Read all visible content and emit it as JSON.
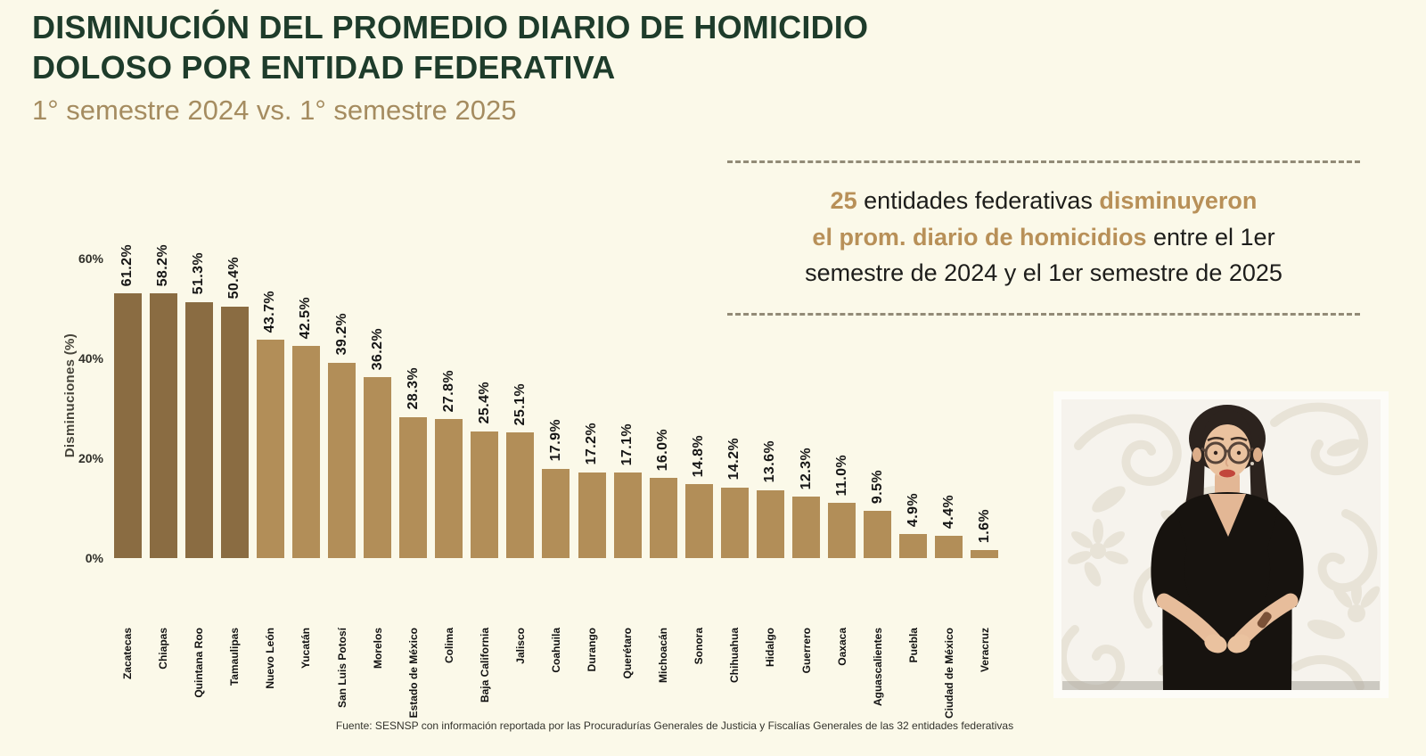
{
  "header": {
    "title_line1": "DISMINUCIÓN DEL PROMEDIO DIARIO DE HOMICIDIO",
    "title_line2": "DOLOSO POR ENTIDAD FEDERATIVA",
    "title_color": "#1e3c2b",
    "subtitle": "1° semestre 2024 vs. 1° semestre 2025",
    "subtitle_color": "#a58c60"
  },
  "annotation": {
    "lines": [
      [
        {
          "text": "25",
          "gold": true
        },
        {
          "text": " entidades federativas ",
          "gold": false
        },
        {
          "text": "disminuyeron",
          "gold": true
        }
      ],
      [
        {
          "text": "el prom. diario de homicidios",
          "gold": true
        },
        {
          "text": " entre el 1er",
          "gold": false
        }
      ],
      [
        {
          "text": "semestre de 2024 y el 1er semestre de 2025",
          "gold": false
        }
      ]
    ],
    "gold_color": "#b89058",
    "text_color": "#1d1d1b"
  },
  "chart_data": {
    "type": "bar",
    "title": "Disminución del promedio diario de homicidio doloso por entidad federativa, 1° semestre 2024 vs. 1° semestre 2025",
    "xlabel": "",
    "ylabel": "Disminuciones (%)",
    "ylim": [
      0,
      63
    ],
    "grid": false,
    "legend": null,
    "yticks": [
      {
        "label": "0%",
        "value": 0
      },
      {
        "label": "20%",
        "value": 20
      },
      {
        "label": "40%",
        "value": 40
      },
      {
        "label": "60%",
        "value": 60
      }
    ],
    "categories": [
      "Zacatecas",
      "Chiapas",
      "Quintana Roo",
      "Tamaulipas",
      "Nuevo León",
      "Yucatán",
      "San Luis Potosí",
      "Morelos",
      "Estado de México",
      "Colima",
      "Baja California",
      "Jalisco",
      "Coahuila",
      "Durango",
      "Querétaro",
      "Michoacán",
      "Sonora",
      "Chihuahua",
      "Hidalgo",
      "Guerrero",
      "Oaxaca",
      "Aguascalientes",
      "Puebla",
      "Ciudad de México",
      "Veracruz"
    ],
    "values": [
      61.2,
      58.2,
      51.3,
      50.4,
      43.7,
      42.5,
      39.2,
      36.2,
      28.3,
      27.8,
      25.4,
      25.1,
      17.9,
      17.2,
      17.1,
      16.0,
      14.8,
      14.2,
      13.6,
      12.3,
      11.0,
      9.5,
      4.9,
      4.4,
      1.6
    ],
    "value_labels": [
      "61.2%",
      "58.2%",
      "51.3%",
      "50.4%",
      "43.7%",
      "42.5%",
      "39.2%",
      "36.2%",
      "28.3%",
      "27.8%",
      "25.4%",
      "25.1%",
      "17.9%",
      "17.2%",
      "17.1%",
      "16.0%",
      "14.8%",
      "14.2%",
      "13.6%",
      "12.3%",
      "11.0%",
      "9.5%",
      "4.9%",
      "4.4%",
      "1.6%"
    ],
    "bar_colors": {
      "dark": "#8a6c42",
      "light": "#b28e58",
      "dark_count": 4
    }
  },
  "footer": {
    "source": "Fuente: SESNSP con información reportada por las Procuradurías Generales de Justicia y Fiscalías Generales de las 32 entidades federativas"
  },
  "page": {
    "background": "#fbf9e9"
  }
}
